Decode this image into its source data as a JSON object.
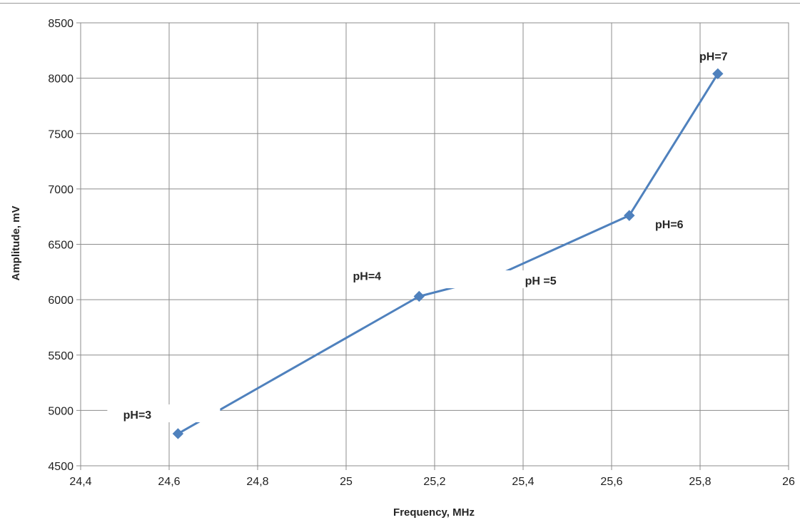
{
  "chart_data": {
    "type": "scatter",
    "mode": "lines+markers",
    "title": "",
    "xlabel": "Frequency, MHz",
    "ylabel": "Amplitude, mV",
    "xlim": [
      24.4,
      26
    ],
    "ylim": [
      4500,
      8500
    ],
    "x_ticks": [
      "24,4",
      "24,6",
      "24,8",
      "25",
      "25,2",
      "25,4",
      "25,6",
      "25,8",
      "26"
    ],
    "y_ticks": [
      "4500",
      "5000",
      "5500",
      "6000",
      "6500",
      "7000",
      "7500",
      "8000",
      "8500"
    ],
    "grid": true,
    "legend": "none",
    "series_color": "#4f81bd",
    "series": [
      {
        "x": [
          24.62,
          25.165,
          25.33,
          25.64,
          25.84
        ],
        "y": [
          4790,
          6030,
          6200,
          6760,
          8040
        ],
        "point_labels": [
          "pH=3",
          "pH=4",
          "pH =5",
          "pH=6",
          "pH=7"
        ]
      }
    ]
  }
}
